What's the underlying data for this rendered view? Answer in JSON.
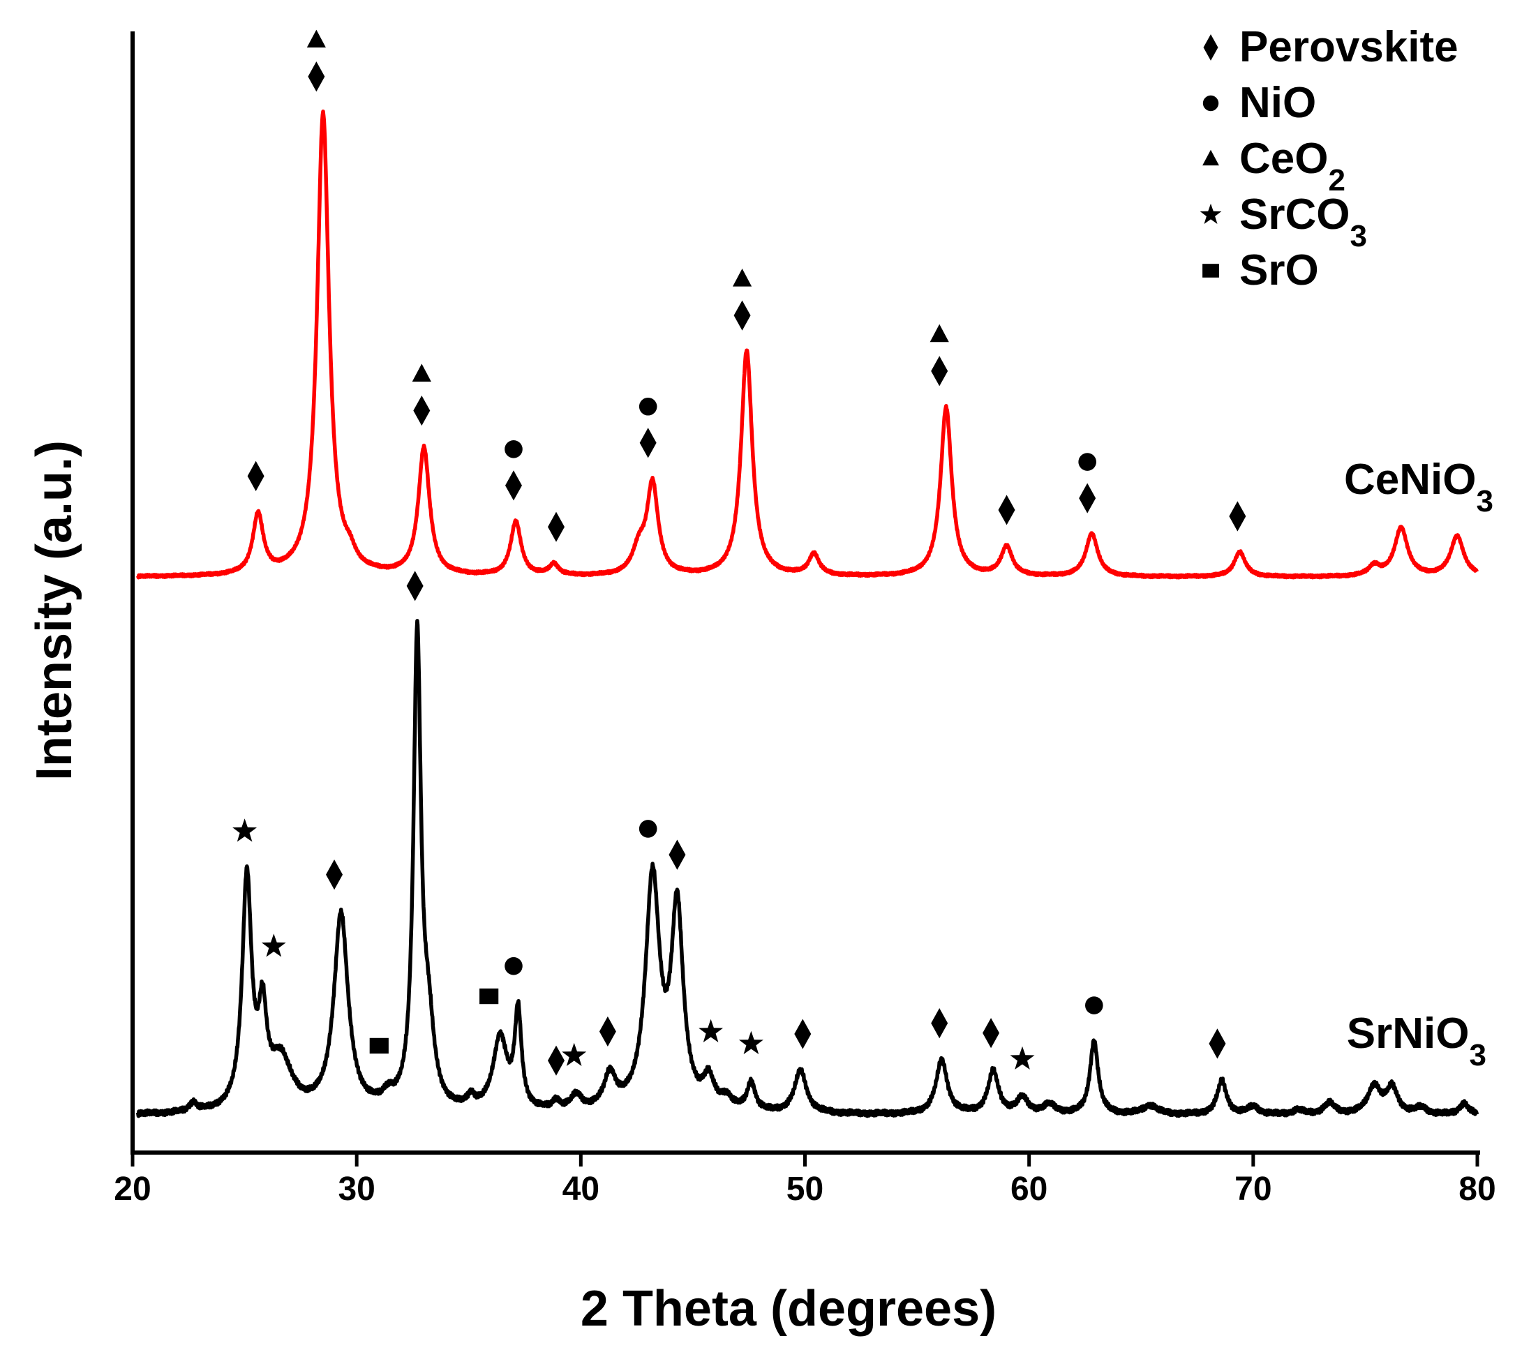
{
  "chart_data": {
    "type": "line",
    "title": "",
    "xlabel": "2 Theta (degrees)",
    "ylabel": "Intensity (a.u.)",
    "xlim": [
      20,
      80
    ],
    "ylim": [
      0,
      100
    ],
    "xticks": [
      "20",
      "30",
      "40",
      "50",
      "60",
      "70",
      "80"
    ],
    "legend": {
      "position": "top-right",
      "entries": [
        {
          "symbol": "diamond",
          "label": "Perovskite"
        },
        {
          "symbol": "circle",
          "label": "NiO"
        },
        {
          "symbol": "triangle",
          "label": "CeO",
          "sub": "2"
        },
        {
          "symbol": "star",
          "label": "SrCO",
          "sub": "3"
        },
        {
          "symbol": "square",
          "label": "SrO"
        }
      ]
    },
    "series": [
      {
        "name": "CeNiO",
        "name_sub": "3",
        "color": "#ff0000",
        "baseline": 51.0,
        "noise": 0.12,
        "peaks": [
          [
            25.6,
            5.3,
            0.28
          ],
          [
            28.5,
            41.0,
            0.32
          ],
          [
            29.7,
            1.0,
            0.3
          ],
          [
            33.0,
            11.3,
            0.3
          ],
          [
            37.1,
            4.8,
            0.28
          ],
          [
            38.8,
            1.0,
            0.25
          ],
          [
            42.6,
            2.2,
            0.35
          ],
          [
            43.2,
            8.0,
            0.3
          ],
          [
            47.4,
            20.0,
            0.3
          ],
          [
            50.4,
            1.9,
            0.28
          ],
          [
            56.3,
            15.0,
            0.3
          ],
          [
            59.0,
            2.6,
            0.3
          ],
          [
            62.8,
            3.8,
            0.32
          ],
          [
            69.4,
            2.2,
            0.3
          ],
          [
            75.4,
            0.9,
            0.3
          ],
          [
            76.6,
            4.3,
            0.35
          ],
          [
            79.1,
            3.6,
            0.35
          ]
        ],
        "markers": [
          {
            "x": 25.5,
            "symbols": [
              "diamond"
            ]
          },
          {
            "x": 28.2,
            "symbols": [
              "diamond",
              "triangle"
            ]
          },
          {
            "x": 32.9,
            "symbols": [
              "diamond",
              "triangle"
            ]
          },
          {
            "x": 37.0,
            "symbols": [
              "diamond",
              "circle"
            ]
          },
          {
            "x": 38.9,
            "symbols": [
              "diamond"
            ]
          },
          {
            "x": 43.0,
            "symbols": [
              "diamond",
              "circle"
            ]
          },
          {
            "x": 47.2,
            "symbols": [
              "diamond",
              "triangle"
            ]
          },
          {
            "x": 56.0,
            "symbols": [
              "diamond",
              "triangle"
            ]
          },
          {
            "x": 59.0,
            "symbols": [
              "diamond"
            ]
          },
          {
            "x": 62.6,
            "symbols": [
              "diamond",
              "circle"
            ]
          },
          {
            "x": 69.3,
            "symbols": [
              "diamond"
            ]
          }
        ]
      },
      {
        "name": "SrNiO",
        "name_sub": "3",
        "color": "#000000",
        "baseline": 3.3,
        "noise": 0.25,
        "peaks": [
          [
            22.7,
            0.8,
            0.2
          ],
          [
            25.1,
            20.5,
            0.25
          ],
          [
            25.8,
            7.5,
            0.22
          ],
          [
            26.6,
            4.5,
            0.6
          ],
          [
            29.3,
            17.5,
            0.38
          ],
          [
            31.4,
            1.0,
            0.3
          ],
          [
            32.7,
            41.5,
            0.2
          ],
          [
            33.2,
            6.5,
            0.3
          ],
          [
            35.1,
            1.0,
            0.2
          ],
          [
            36.4,
            6.5,
            0.38
          ],
          [
            37.2,
            8.5,
            0.18
          ],
          [
            38.9,
            0.8,
            0.2
          ],
          [
            39.8,
            1.3,
            0.3
          ],
          [
            41.3,
            3.0,
            0.32
          ],
          [
            43.2,
            20.5,
            0.38
          ],
          [
            44.3,
            17.5,
            0.32
          ],
          [
            45.7,
            2.5,
            0.3
          ],
          [
            46.5,
            1.0,
            0.3
          ],
          [
            47.6,
            2.5,
            0.22
          ],
          [
            49.8,
            3.8,
            0.32
          ],
          [
            56.1,
            4.8,
            0.3
          ],
          [
            58.4,
            3.8,
            0.28
          ],
          [
            59.7,
            1.4,
            0.3
          ],
          [
            60.9,
            0.8,
            0.35
          ],
          [
            62.9,
            6.5,
            0.22
          ],
          [
            65.4,
            0.8,
            0.4
          ],
          [
            68.6,
            3.0,
            0.25
          ],
          [
            70.0,
            0.7,
            0.3
          ],
          [
            72.0,
            0.4,
            0.3
          ],
          [
            73.4,
            1.0,
            0.3
          ],
          [
            75.4,
            2.5,
            0.35
          ],
          [
            76.2,
            2.3,
            0.3
          ],
          [
            77.5,
            0.6,
            0.3
          ],
          [
            79.4,
            1.0,
            0.25
          ]
        ],
        "markers": [
          {
            "x": 25.0,
            "symbols": [
              "star"
            ]
          },
          {
            "x": 26.3,
            "symbols": [
              "star"
            ]
          },
          {
            "x": 29.0,
            "symbols": [
              "diamond"
            ]
          },
          {
            "x": 31.0,
            "symbols": [
              "square"
            ]
          },
          {
            "x": 32.6,
            "symbols": [
              "diamond"
            ]
          },
          {
            "x": 35.9,
            "symbols": [
              "square"
            ]
          },
          {
            "x": 37.0,
            "symbols": [
              "circle"
            ]
          },
          {
            "x": 38.9,
            "symbols": [
              "diamond"
            ]
          },
          {
            "x": 39.7,
            "symbols": [
              "star"
            ]
          },
          {
            "x": 41.2,
            "symbols": [
              "diamond"
            ]
          },
          {
            "x": 43.0,
            "symbols": [
              "circle"
            ]
          },
          {
            "x": 44.3,
            "symbols": [
              "diamond"
            ]
          },
          {
            "x": 45.8,
            "symbols": [
              "star"
            ]
          },
          {
            "x": 47.6,
            "symbols": [
              "star"
            ]
          },
          {
            "x": 49.9,
            "symbols": [
              "diamond"
            ]
          },
          {
            "x": 56.0,
            "symbols": [
              "diamond"
            ]
          },
          {
            "x": 58.3,
            "symbols": [
              "diamond"
            ]
          },
          {
            "x": 59.7,
            "symbols": [
              "star"
            ]
          },
          {
            "x": 62.9,
            "symbols": [
              "circle"
            ]
          },
          {
            "x": 68.4,
            "symbols": [
              "diamond"
            ]
          }
        ]
      }
    ]
  }
}
